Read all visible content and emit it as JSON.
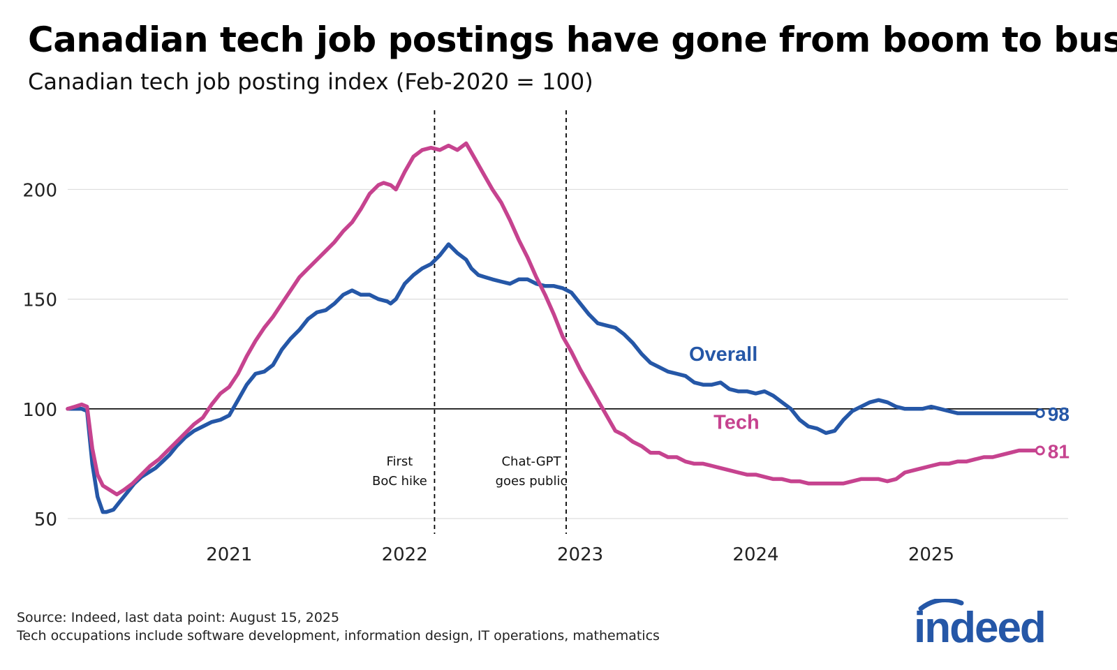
{
  "title": "Canadian tech job postings have gone from boom to bust",
  "subtitle": "Canadian tech job posting index (Feb-2020 = 100)",
  "source_line1": "Source: Indeed, last data point: August 15, 2025",
  "source_line2": "Tech occupations include software development, information design, IT operations, mathematics",
  "logo_text": "indeed",
  "colors": {
    "overall": "#2557a7",
    "tech": "#c6438f",
    "grid": "#dddddd",
    "axis": "#000000",
    "logo": "#2557a7"
  },
  "chart_data": {
    "type": "line",
    "title": "Canadian tech job postings have gone from boom to bust",
    "subtitle": "Canadian tech job posting index (Feb-2020 = 100)",
    "xlabel": "",
    "ylabel": "",
    "xlim": [
      2020.08,
      2025.78
    ],
    "ylim": [
      43,
      238
    ],
    "x_ticks": [
      {
        "value": 2021,
        "label": "2021"
      },
      {
        "value": 2022,
        "label": "2022"
      },
      {
        "value": 2023,
        "label": "2023"
      },
      {
        "value": 2024,
        "label": "2024"
      },
      {
        "value": 2025,
        "label": "2025"
      }
    ],
    "y_ticks": [
      {
        "value": 50,
        "label": "50"
      },
      {
        "value": 100,
        "label": "100"
      },
      {
        "value": 150,
        "label": "150"
      },
      {
        "value": 200,
        "label": "200"
      }
    ],
    "reference_line": 100,
    "grid": "horizontal",
    "annotations": [
      {
        "x": 2022.17,
        "lines": [
          "First",
          "BoC hike"
        ]
      },
      {
        "x": 2022.92,
        "lines": [
          "Chat-GPT",
          "goes public"
        ]
      }
    ],
    "series": [
      {
        "name": "Overall",
        "end_label": "98",
        "x": [
          2020.08,
          2020.12,
          2020.16,
          2020.19,
          2020.22,
          2020.25,
          2020.28,
          2020.3,
          2020.34,
          2020.38,
          2020.42,
          2020.46,
          2020.5,
          2020.54,
          2020.58,
          2020.62,
          2020.66,
          2020.7,
          2020.75,
          2020.8,
          2020.85,
          2020.9,
          2020.95,
          2021.0,
          2021.05,
          2021.1,
          2021.15,
          2021.2,
          2021.25,
          2021.3,
          2021.35,
          2021.4,
          2021.45,
          2021.5,
          2021.55,
          2021.6,
          2021.65,
          2021.7,
          2021.75,
          2021.8,
          2021.85,
          2021.9,
          2021.92,
          2021.95,
          2022.0,
          2022.05,
          2022.1,
          2022.15,
          2022.2,
          2022.25,
          2022.3,
          2022.35,
          2022.38,
          2022.42,
          2022.46,
          2022.5,
          2022.55,
          2022.6,
          2022.65,
          2022.7,
          2022.75,
          2022.8,
          2022.85,
          2022.9,
          2022.95,
          2023.0,
          2023.05,
          2023.1,
          2023.15,
          2023.2,
          2023.25,
          2023.3,
          2023.35,
          2023.4,
          2023.45,
          2023.5,
          2023.55,
          2023.6,
          2023.65,
          2023.7,
          2023.75,
          2023.8,
          2023.85,
          2023.9,
          2023.95,
          2024.0,
          2024.05,
          2024.1,
          2024.15,
          2024.2,
          2024.25,
          2024.3,
          2024.35,
          2024.4,
          2024.45,
          2024.5,
          2024.55,
          2024.6,
          2024.65,
          2024.7,
          2024.75,
          2024.8,
          2024.85,
          2024.9,
          2024.95,
          2025.0,
          2025.05,
          2025.1,
          2025.15,
          2025.2,
          2025.25,
          2025.3,
          2025.35,
          2025.4,
          2025.45,
          2025.5,
          2025.55,
          2025.62
        ],
        "values": [
          100,
          100,
          100,
          99,
          75,
          60,
          53,
          53,
          54,
          58,
          62,
          66,
          69,
          71,
          73,
          76,
          79,
          83,
          87,
          90,
          92,
          94,
          95,
          97,
          104,
          111,
          116,
          117,
          120,
          127,
          132,
          136,
          141,
          144,
          145,
          148,
          152,
          154,
          152,
          152,
          150,
          149,
          148,
          150,
          157,
          161,
          164,
          166,
          170,
          175,
          171,
          168,
          164,
          161,
          160,
          159,
          158,
          157,
          159,
          159,
          157,
          156,
          156,
          155,
          153,
          148,
          143,
          139,
          138,
          137,
          134,
          130,
          125,
          121,
          119,
          117,
          116,
          115,
          112,
          111,
          111,
          112,
          109,
          108,
          108,
          107,
          108,
          106,
          103,
          100,
          95,
          92,
          91,
          89,
          90,
          95,
          99,
          101,
          103,
          104,
          103,
          101,
          100,
          100,
          100,
          101,
          100,
          99,
          98,
          98,
          98,
          98,
          98,
          98,
          98,
          98,
          98,
          98
        ],
        "x_fix": null
      },
      {
        "name": "Tech",
        "end_label": "81",
        "x": [
          2020.08,
          2020.12,
          2020.16,
          2020.19,
          2020.22,
          2020.25,
          2020.28,
          2020.32,
          2020.36,
          2020.4,
          2020.45,
          2020.5,
          2020.55,
          2020.6,
          2020.65,
          2020.7,
          2020.75,
          2020.8,
          2020.85,
          2020.9,
          2020.95,
          2021.0,
          2021.05,
          2021.1,
          2021.15,
          2021.2,
          2021.25,
          2021.3,
          2021.35,
          2021.4,
          2021.45,
          2021.5,
          2021.55,
          2021.6,
          2021.65,
          2021.7,
          2021.75,
          2021.8,
          2021.85,
          2021.88,
          2021.92,
          2021.95,
          2022.0,
          2022.05,
          2022.1,
          2022.15,
          2022.2,
          2022.25,
          2022.3,
          2022.35,
          2022.4,
          2022.45,
          2022.5,
          2022.55,
          2022.6,
          2022.65,
          2022.7,
          2022.75,
          2022.8,
          2022.85,
          2022.9,
          2022.95,
          2023.0,
          2023.05,
          2023.1,
          2023.15,
          2023.2,
          2023.25,
          2023.3,
          2023.35,
          2023.4,
          2023.45,
          2023.5,
          2023.55,
          2023.6,
          2023.65,
          2023.7,
          2023.75,
          2023.8,
          2023.85,
          2023.9,
          2023.95,
          2024.0,
          2024.05,
          2024.1,
          2024.15,
          2024.2,
          2024.25,
          2024.3,
          2024.35,
          2024.4,
          2024.45,
          2024.5,
          2024.55,
          2024.6,
          2024.65,
          2024.7,
          2024.75,
          2024.8,
          2024.85,
          2024.9,
          2024.95,
          2025.0,
          2025.05,
          2025.1,
          2025.15,
          2025.2,
          2025.25,
          2025.3,
          2025.35,
          2025.4,
          2025.45,
          2025.5,
          2025.55,
          2025.62
        ],
        "values": [
          100,
          101,
          102,
          101,
          82,
          70,
          65,
          63,
          61,
          63,
          66,
          70,
          74,
          77,
          81,
          85,
          89,
          93,
          96,
          102,
          107,
          110,
          116,
          124,
          131,
          137,
          142,
          148,
          154,
          160,
          164,
          168,
          172,
          176,
          181,
          185,
          191,
          198,
          202,
          203,
          202,
          200,
          208,
          215,
          218,
          219,
          218,
          220,
          218,
          221,
          214,
          207,
          200,
          194,
          186,
          177,
          169,
          160,
          152,
          143,
          133,
          126,
          118,
          111,
          104,
          97,
          90,
          88,
          85,
          83,
          80,
          80,
          78,
          78,
          76,
          75,
          75,
          74,
          73,
          72,
          71,
          70,
          70,
          69,
          68,
          68,
          67,
          67,
          66,
          66,
          66,
          66,
          66,
          67,
          68,
          68,
          68,
          67,
          68,
          71,
          72,
          73,
          74,
          75,
          75,
          76,
          76,
          77,
          78,
          78,
          79,
          80,
          81,
          81,
          81
        ],
        "x_fix": null
      }
    ],
    "series_labels": [
      {
        "name": "Overall",
        "x": 2023.62,
        "y": 125
      },
      {
        "name": "Tech",
        "x": 2023.76,
        "y": 94
      }
    ]
  }
}
